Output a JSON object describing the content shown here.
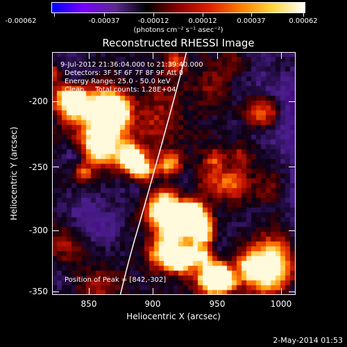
{
  "colorbar": {
    "colors": [
      "#0000ff",
      "#7700ff",
      "#5a2a90",
      "#000000",
      "#8b0000",
      "#e02000",
      "#ff8000",
      "#ffd840",
      "#ffffff"
    ],
    "ticks": [
      "-0.00062",
      "-0.00037",
      "-0.00012",
      "0.00012",
      "0.00037",
      "0.00062"
    ],
    "units": "(photons cm⁻² s⁻¹ asec⁻²)"
  },
  "title": "Reconstructed RHESSI Image",
  "info": {
    "time": "9-Jul-2012 21:36:04.000 to 21:39:40.000",
    "detectors": "Detectors: 3F 5F 6F 7F 8F 9F Att 0",
    "energy": "Energy Range: 25.0 - 50.0 keV",
    "clean": "Clean     Total counts: 1.28E+04",
    "peak": "Position of Peak = [842,-302]"
  },
  "xaxis": {
    "label": "Heliocentric X (arcsec)",
    "ticks": [
      "850",
      "900",
      "950",
      "1000"
    ]
  },
  "yaxis": {
    "label": "Heliocentric Y (arcsec)",
    "ticks": [
      "-200",
      "-250",
      "-300",
      "-350"
    ]
  },
  "footer": {
    "date": "2-May-2014 01:53"
  }
}
